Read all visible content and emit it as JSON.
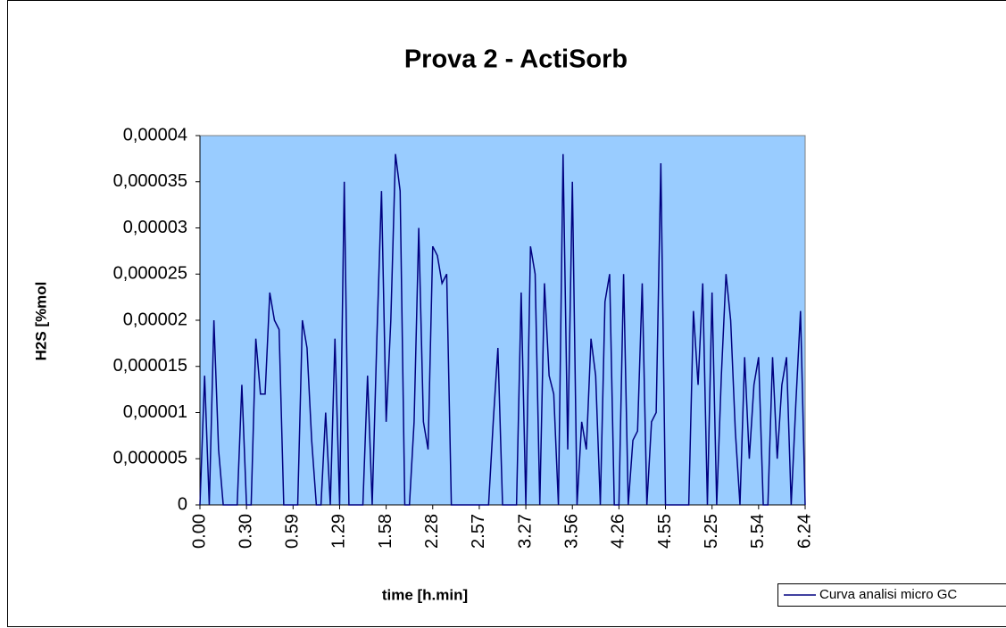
{
  "chart_data": {
    "type": "line",
    "title": "Prova 2 - ActiSorb",
    "x_label": "time [h.min]",
    "y_label": "H2S [%mol",
    "categories": [
      "0.00",
      null,
      null,
      null,
      null,
      null,
      null,
      null,
      null,
      null,
      "0.30",
      null,
      null,
      null,
      null,
      null,
      null,
      null,
      null,
      null,
      "0.59",
      null,
      null,
      null,
      null,
      null,
      null,
      null,
      null,
      null,
      "1.29",
      null,
      null,
      null,
      null,
      null,
      null,
      null,
      null,
      null,
      "1.58",
      null,
      null,
      null,
      null,
      null,
      null,
      null,
      null,
      null,
      "2.28",
      null,
      null,
      null,
      null,
      null,
      null,
      null,
      null,
      null,
      "2.57",
      null,
      null,
      null,
      null,
      null,
      null,
      null,
      null,
      null,
      "3.27",
      null,
      null,
      null,
      null,
      null,
      null,
      null,
      null,
      null,
      "3.56",
      null,
      null,
      null,
      null,
      null,
      null,
      null,
      null,
      null,
      "4.26",
      null,
      null,
      null,
      null,
      null,
      null,
      null,
      null,
      null,
      "4.55",
      null,
      null,
      null,
      null,
      null,
      null,
      null,
      null,
      null,
      "5.25",
      null,
      null,
      null,
      null,
      null,
      null,
      null,
      null,
      null,
      "5.54",
      null,
      null,
      null,
      null,
      null,
      null,
      null,
      null,
      null,
      "6.24"
    ],
    "series": [
      {
        "name": "Curva analisi micro GC",
        "color": "#000080",
        "values": [
          0,
          1.4e-05,
          0,
          2e-05,
          6e-06,
          0,
          0,
          0,
          0,
          1.3e-05,
          0,
          0,
          1.8e-05,
          1.2e-05,
          1.2e-05,
          2.3e-05,
          2e-05,
          1.9e-05,
          0,
          0,
          0,
          0,
          2e-05,
          1.7e-05,
          7e-06,
          0,
          0,
          1e-05,
          0,
          1.8e-05,
          0,
          3.5e-05,
          0,
          0,
          0,
          0,
          1.4e-05,
          0,
          1.8e-05,
          3.4e-05,
          9e-06,
          2e-05,
          3.8e-05,
          3.4e-05,
          0,
          0,
          9e-06,
          3e-05,
          9e-06,
          6e-06,
          2.8e-05,
          2.7e-05,
          2.4e-05,
          2.5e-05,
          0,
          0,
          0,
          0,
          0,
          0,
          0,
          0,
          0,
          9e-06,
          1.7e-05,
          0,
          0,
          0,
          0,
          2.3e-05,
          0,
          2.8e-05,
          2.5e-05,
          0,
          2.4e-05,
          1.4e-05,
          1.2e-05,
          0,
          3.8e-05,
          6e-06,
          3.5e-05,
          0,
          9e-06,
          6e-06,
          1.8e-05,
          1.4e-05,
          0,
          2.2e-05,
          2.5e-05,
          0,
          0,
          2.5e-05,
          0,
          7e-06,
          8e-06,
          2.4e-05,
          0,
          9e-06,
          1e-05,
          3.7e-05,
          0,
          0,
          0,
          0,
          0,
          0,
          2.1e-05,
          1.3e-05,
          2.4e-05,
          0,
          2.3e-05,
          0,
          1.4e-05,
          2.5e-05,
          2e-05,
          8e-06,
          0,
          1.6e-05,
          5e-06,
          1.3e-05,
          1.6e-05,
          0,
          0,
          1.6e-05,
          5e-06,
          1.3e-05,
          1.6e-05,
          0,
          1.1e-05,
          2.1e-05,
          0
        ]
      }
    ],
    "ylim": [
      0,
      4e-05
    ],
    "yticks": [
      0,
      {
        "value": 5e-06,
        "label": "0,000005"
      },
      {
        "value": 1e-05,
        "label": "0,00001"
      },
      {
        "value": 1.5e-05,
        "label": "0,000015"
      },
      {
        "value": 2e-05,
        "label": "0,00002"
      },
      {
        "value": 2.5e-05,
        "label": "0,000025"
      },
      {
        "value": 3e-05,
        "label": "0,00003"
      },
      {
        "value": 3.5e-05,
        "label": "0,000035"
      },
      {
        "value": 4e-05,
        "label": "0,00004"
      }
    ],
    "plot_background": "#99ccff",
    "grid": false,
    "legend": "bottom-right"
  }
}
